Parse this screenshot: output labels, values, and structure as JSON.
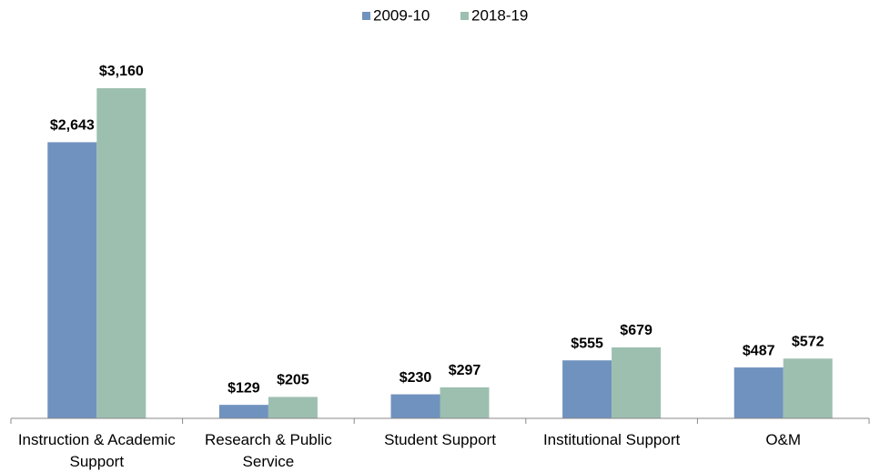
{
  "chart_data": {
    "type": "bar",
    "categories": [
      "Instruction & Academic Support",
      "Research & Public Service",
      "Student Support",
      "Institutional Support",
      "O&M"
    ],
    "series": [
      {
        "name": "2009-10",
        "color": "#7092be",
        "values": [
          2643,
          129,
          230,
          555,
          487
        ],
        "value_labels": [
          "$2,643",
          "$129",
          "$230",
          "$555",
          "$487"
        ]
      },
      {
        "name": "2018-19",
        "color": "#9dbfb0",
        "values": [
          3160,
          205,
          297,
          679,
          572
        ],
        "value_labels": [
          "$3,160",
          "$205",
          "$297",
          "$679",
          "$572"
        ]
      }
    ],
    "legend": "top"
  }
}
